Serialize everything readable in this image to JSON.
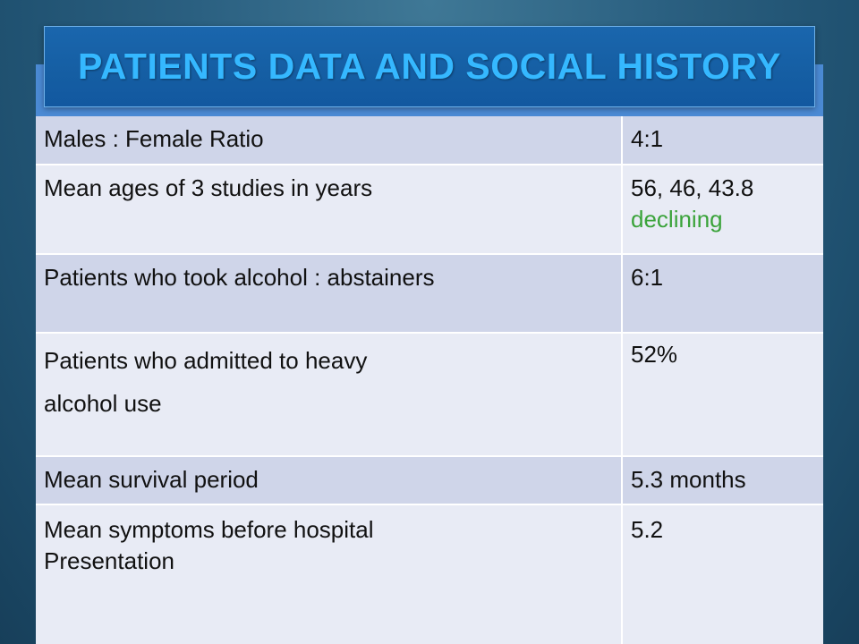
{
  "slide": {
    "title": "PATIENTS DATA AND SOCIAL HISTORY"
  },
  "table": {
    "rows": [
      {
        "label": "Males : Female Ratio",
        "value": "4:1"
      },
      {
        "label": "Mean ages of 3 studies in years",
        "value": "56, 46, 43.8",
        "note": "declining"
      },
      {
        "label": "Patients who took alcohol : abstainers",
        "value": "6:1"
      },
      {
        "label_line1": "Patients who admitted to heavy",
        "label_line2": "alcohol use",
        "value": "52%"
      },
      {
        "label": "Mean survival period",
        "value": "5.3 months"
      },
      {
        "label_line1": "Mean symptoms before hospital",
        "label_line2": "Presentation",
        "value": "5.2"
      }
    ]
  },
  "colors": {
    "background": "#2a5f80",
    "title_box": "#155ea3",
    "title_text": "#35b8ff",
    "row_dark": "#cfd5e9",
    "row_light": "#e8ebf5",
    "note_green": "#3aa33a"
  }
}
